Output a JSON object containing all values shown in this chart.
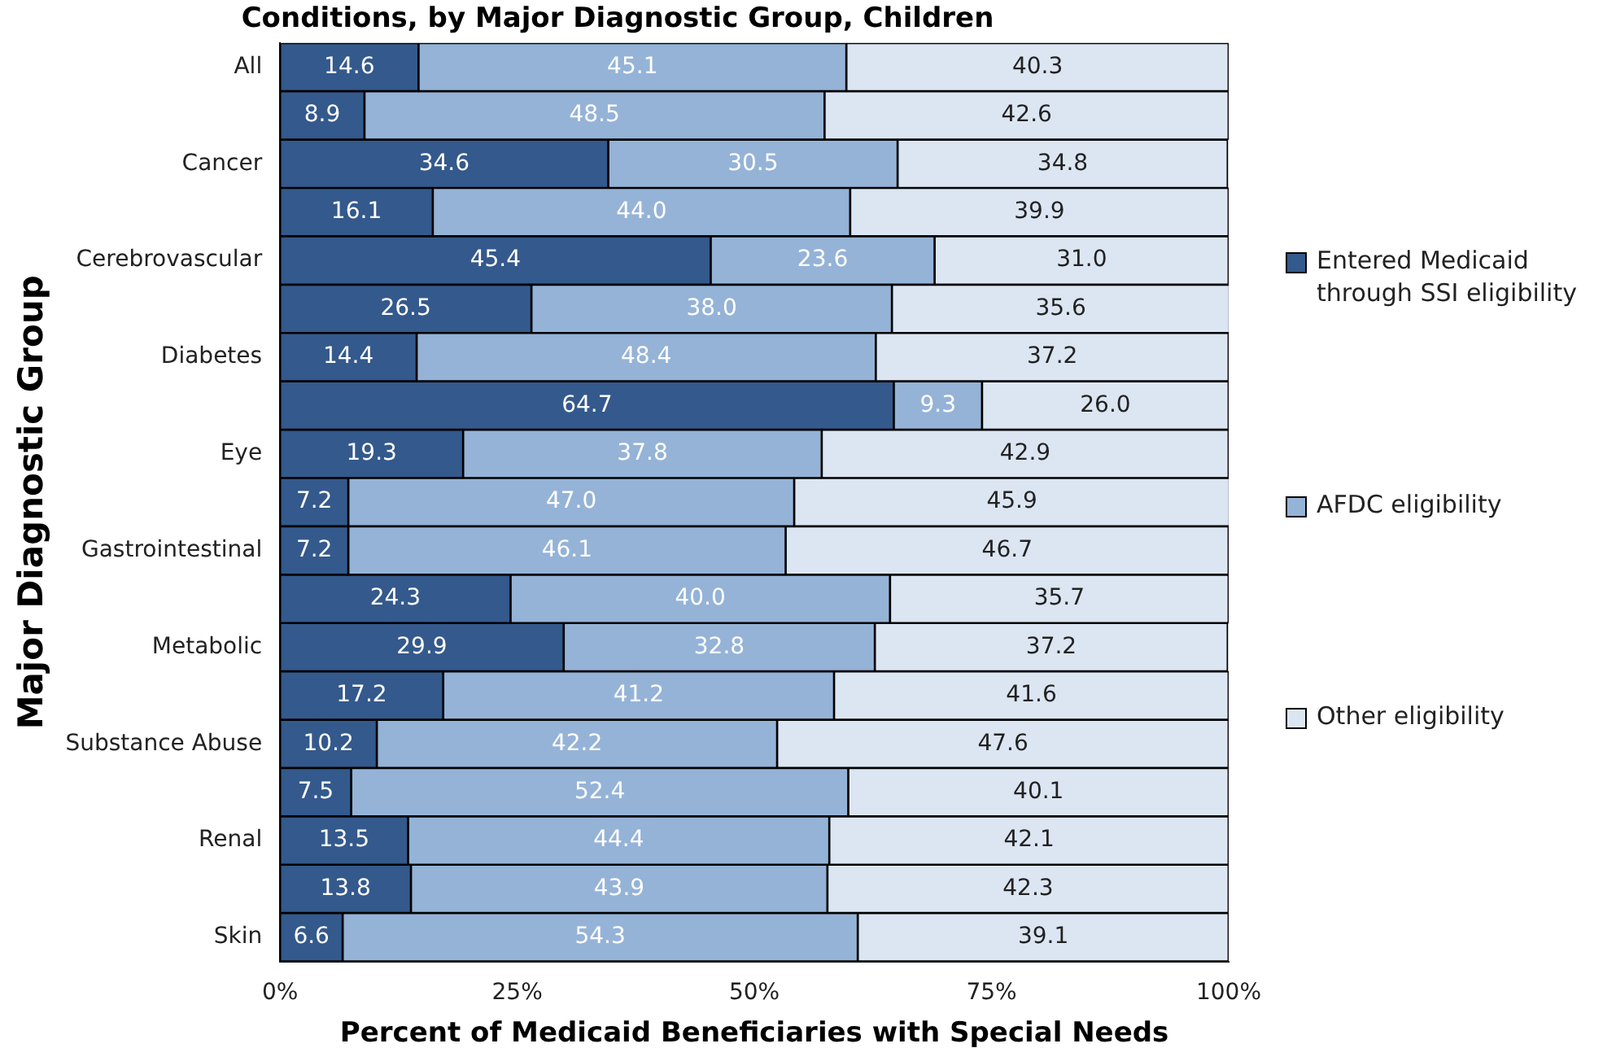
{
  "chart_data": {
    "type": "bar",
    "orientation": "horizontal",
    "stacked": true,
    "title": "Conditions, by Major Diagnostic Group, Children",
    "xlabel": "Percent of Medicaid Beneficiaries with Special Needs",
    "ylabel": "Major Diagnostic Group",
    "categories": [
      "All",
      null,
      "Cancer",
      null,
      "Cerebrovascular",
      null,
      "Diabetes",
      null,
      "Eye",
      null,
      "Gastrointestinal",
      null,
      "Metabolic",
      null,
      "Substance Abuse",
      null,
      "Renal",
      null,
      "Skin"
    ],
    "series": [
      {
        "name": "Entered Medicaid through SSI eligibility",
        "color": "#34598c",
        "values": [
          14.6,
          8.9,
          34.6,
          16.1,
          45.4,
          26.5,
          14.4,
          64.7,
          19.3,
          7.2,
          7.2,
          24.3,
          29.9,
          17.2,
          10.2,
          7.5,
          13.5,
          13.8,
          6.6
        ],
        "value_labels": [
          "14.6",
          "8.9",
          "34.6",
          "16.1",
          "45.4",
          "26.5",
          "14.4",
          "64.7",
          "19.3",
          "7.2",
          "7.2",
          "24.3",
          "29.9",
          "17.2",
          "10.2",
          "7.5",
          "13.5",
          "13.8",
          "6.6"
        ]
      },
      {
        "name": "AFDC eligibility",
        "color": "#95b3d7",
        "values": [
          45.1,
          48.5,
          30.5,
          44.0,
          23.6,
          38.0,
          48.4,
          9.3,
          37.8,
          47.0,
          46.1,
          40.0,
          32.8,
          41.2,
          42.2,
          52.4,
          44.4,
          43.9,
          54.3
        ],
        "value_labels": [
          "45.1",
          "48.5",
          "30.5",
          "44.0",
          "23.6",
          "38.0",
          "48.4",
          "9.3",
          "37.8",
          "47.0",
          "46.1",
          "40.0",
          "32.8",
          "41.2",
          "42.2",
          "52.4",
          "44.4",
          "43.9",
          "54.3"
        ]
      },
      {
        "name": "Other eligibility",
        "color": "#dce6f2",
        "values": [
          40.3,
          42.6,
          34.8,
          39.9,
          31.0,
          35.6,
          37.2,
          26.0,
          42.9,
          45.9,
          46.7,
          35.7,
          37.2,
          41.6,
          47.6,
          40.1,
          42.1,
          42.3,
          39.1
        ],
        "value_labels": [
          "40.3",
          "42.6",
          "34.8",
          "39.9",
          "31.0",
          "35.6",
          "37.2",
          "26.0",
          "42.9",
          "45.9",
          "46.7",
          "35.7",
          "37.2",
          "41.6",
          "47.6",
          "40.1",
          "42.1",
          "42.3",
          "39.1"
        ]
      }
    ],
    "xlim": [
      0,
      100
    ],
    "xticks": [
      {
        "value": 0,
        "label": "0%"
      },
      {
        "value": 25,
        "label": "25%"
      },
      {
        "value": 50,
        "label": "50%"
      },
      {
        "value": 75,
        "label": "75%"
      },
      {
        "value": 100,
        "label": "100%"
      }
    ],
    "grid": false,
    "legend": "right"
  }
}
